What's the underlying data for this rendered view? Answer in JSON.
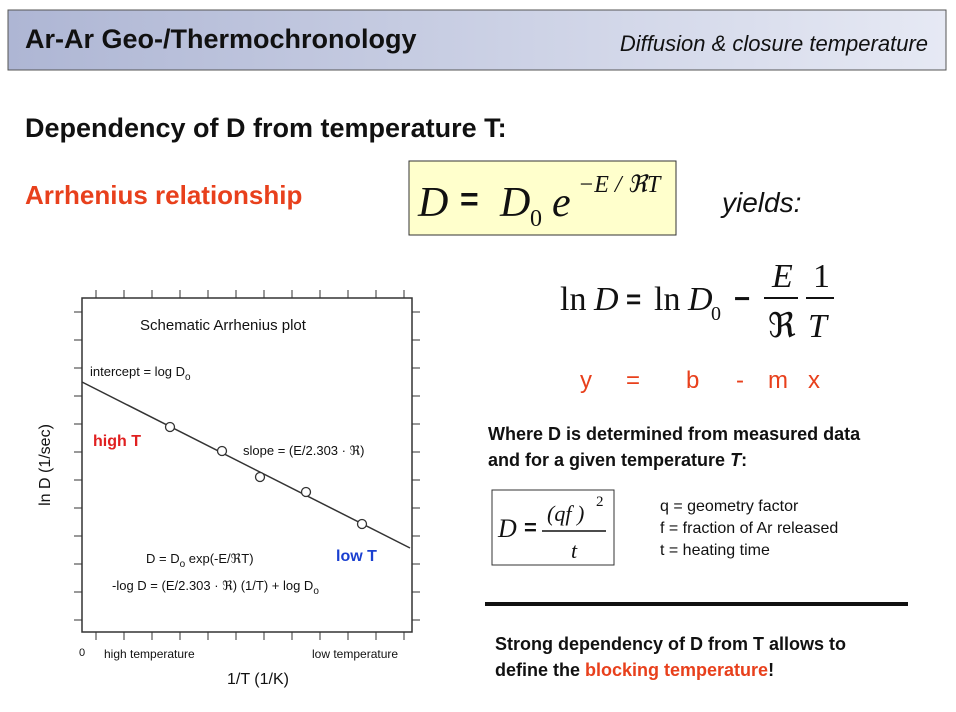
{
  "header": {
    "title": "Ar-Ar Geo-/Thermochronology",
    "subtitle": "Diffusion & closure temperature"
  },
  "heading": "Dependency of D from temperature T:",
  "arrhenius_label": "Arrhenius relationship",
  "formula_main": {
    "d1": "D",
    "eq": "=",
    "d2": "D",
    "sub": "0",
    "e": "e",
    "exp": "−E / ℜT"
  },
  "yields": "yields:",
  "formula_ln": {
    "ln1": "ln",
    "d1": "D",
    "eq": "=",
    "ln2": "ln",
    "d2": "D",
    "sub": "0",
    "minus": "−",
    "num1": "E",
    "den1": "ℜ",
    "num2": "1",
    "den2": "T"
  },
  "linear_form": [
    "y",
    "=",
    "b",
    "-",
    "m",
    "x"
  ],
  "description": {
    "a": "Where ",
    "b": "D",
    "c": " is determined from measured data",
    "d": "and for a given temperature ",
    "e": "T",
    "f": ":"
  },
  "formula_d": {
    "d": "D",
    "eq": "=",
    "num": "(qf )",
    "exp": "2",
    "den": "t"
  },
  "legend": [
    "q = geometry factor",
    "f = fraction of Ar released",
    "t = heating time"
  ],
  "conclusion": {
    "line1": "Strong dependency of D from T allows to",
    "line2": "define the ",
    "highlight": "blocking temperature",
    "end": "!"
  },
  "plot": {
    "title": "Schematic Arrhenius plot",
    "intercept": "intercept = log D",
    "intercept_sub": "o",
    "slope": "slope = (E/2.303 · ℜ)",
    "high_t": "high T",
    "low_t": "low T",
    "eq1": "D = D",
    "eq1_sub": "o",
    "eq1_rest": " exp(-E/ℜT)",
    "eq2": "-log D = (E/2.303 · ℜ) (1/T) + log D",
    "eq2_sub": "o",
    "y_label": "ln D (1/sec)",
    "x_label": "1/T (1/K)",
    "origin": "0",
    "x_high": "high temperature",
    "x_low": "low temperature"
  }
}
